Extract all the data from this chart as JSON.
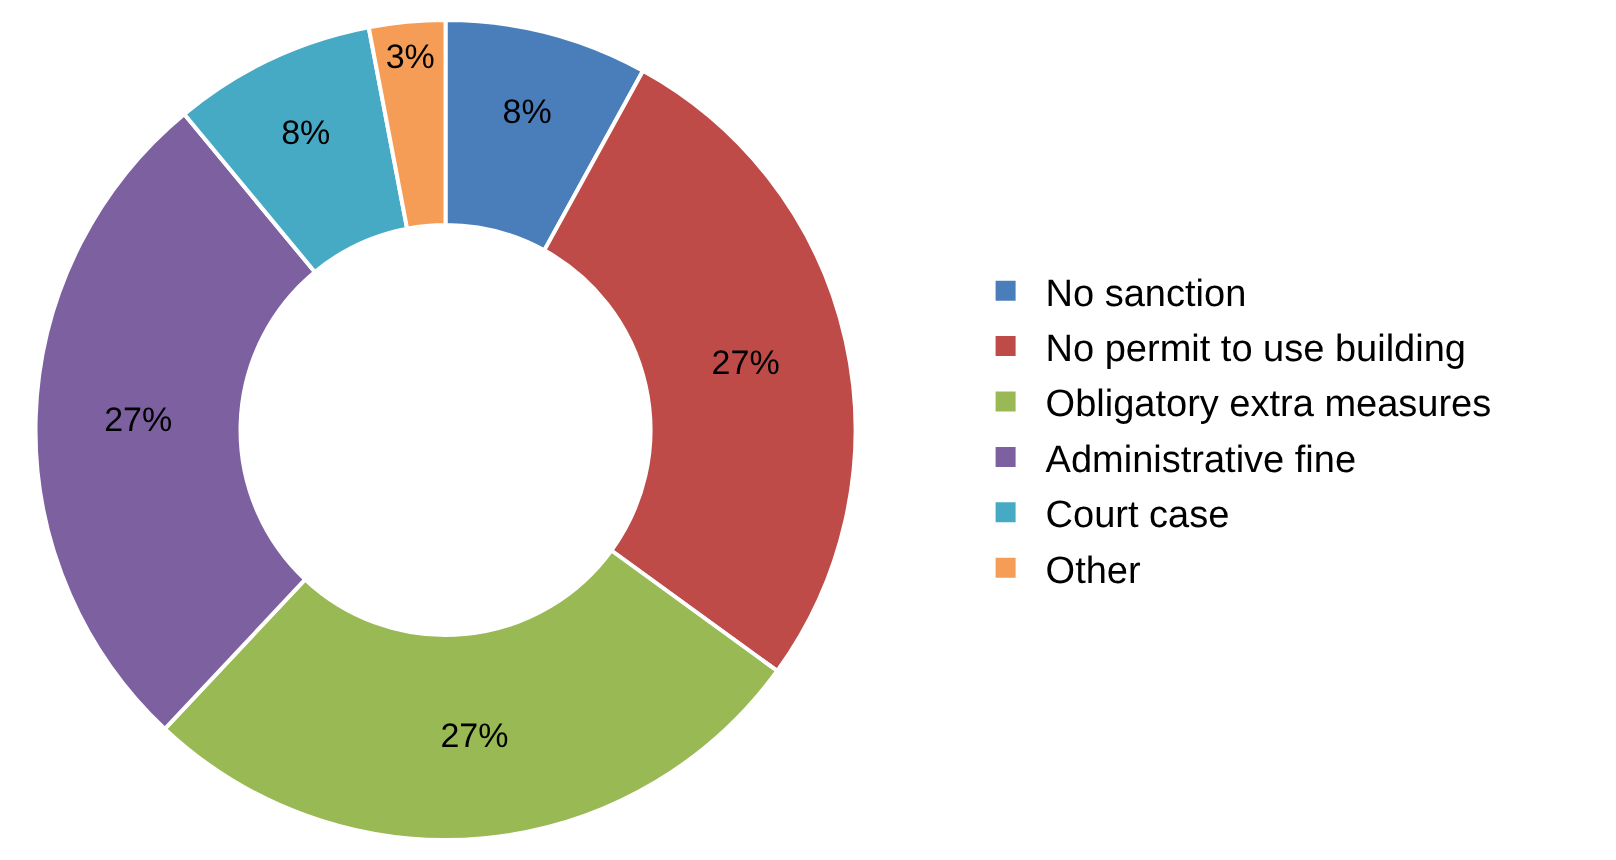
{
  "chart_data": {
    "type": "donut",
    "categories": [
      "No sanction",
      "No permit to use building",
      "Obligatory extra measures",
      "Administrative fine",
      "Court case",
      "Other"
    ],
    "values": [
      8,
      27,
      27,
      27,
      8,
      3
    ],
    "value_labels": [
      "8%",
      "27%",
      "27%",
      "27%",
      "8%",
      "3%"
    ],
    "colors": [
      "#4a7ebb",
      "#be4b48",
      "#98b954",
      "#7d60a0",
      "#46aac5",
      "#f59d56"
    ],
    "legend": "right"
  }
}
